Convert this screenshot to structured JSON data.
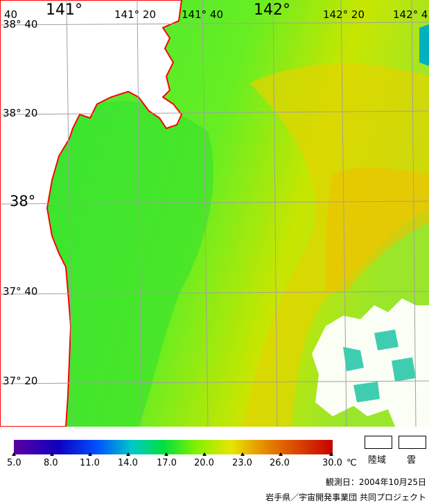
{
  "map": {
    "top_labels": [
      {
        "text": "141°",
        "size": "big"
      },
      {
        "text": "141° 20",
        "size": "sm"
      },
      {
        "text": "141° 40",
        "size": "sm"
      },
      {
        "text": "142°",
        "size": "big"
      },
      {
        "text": "142° 20",
        "size": "sm"
      },
      {
        "text": "142° 4",
        "size": "sm"
      }
    ],
    "corner_label": "40",
    "left_labels": [
      {
        "text": "38° 40",
        "size": "sm"
      },
      {
        "text": "38° 20",
        "size": "sm"
      },
      {
        "text": "38°",
        "size": "big"
      },
      {
        "text": "37° 40",
        "size": "sm"
      },
      {
        "text": "37° 20",
        "size": "sm"
      }
    ],
    "colors": {
      "land": "#ffffff",
      "coast": "#ff0000",
      "grid": "#a0a0a0",
      "sea_cool": "#33e633",
      "sea_warm": "#e6cc00",
      "cloud": "#ffffff"
    }
  },
  "scale": {
    "labels": [
      "5.0",
      "8.0",
      "11.0",
      "14.0",
      "17.0",
      "20.0",
      "23.0",
      "26.0",
      "30.0"
    ],
    "unit": "℃",
    "colors": [
      "#5a00a0",
      "#0000c8",
      "#0050ff",
      "#00c8c8",
      "#00e040",
      "#a0f000",
      "#e6e600",
      "#e68000",
      "#c80000"
    ]
  },
  "legend": {
    "land_label": "陸域",
    "cloud_label": "雲"
  },
  "footer": {
    "observation_date": "観測日：2004年10月25日",
    "credit": "岩手県／宇宙開発事業団 共同プロジェクト"
  }
}
